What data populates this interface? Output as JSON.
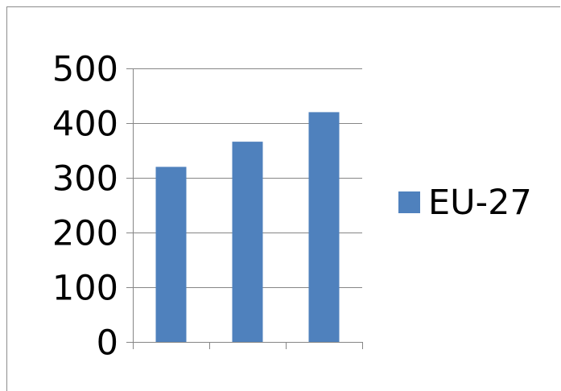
{
  "chart_data": {
    "type": "bar",
    "title": "",
    "xlabel": "",
    "ylabel": "",
    "categories": [
      "",
      "",
      ""
    ],
    "series": [
      {
        "name": "EU-27",
        "color": "#4f81bd",
        "values": [
          320,
          366,
          420
        ]
      }
    ],
    "ylim": [
      0,
      500
    ],
    "yticks": [
      {
        "value": 0,
        "label": "0"
      },
      {
        "value": 100,
        "label": "100"
      },
      {
        "value": 200,
        "label": "200"
      },
      {
        "value": 300,
        "label": "300"
      },
      {
        "value": 400,
        "label": "400"
      },
      {
        "value": 500,
        "label": "500"
      }
    ],
    "grid": true,
    "legend": {
      "position": "right",
      "entries": [
        "EU-27"
      ]
    }
  }
}
